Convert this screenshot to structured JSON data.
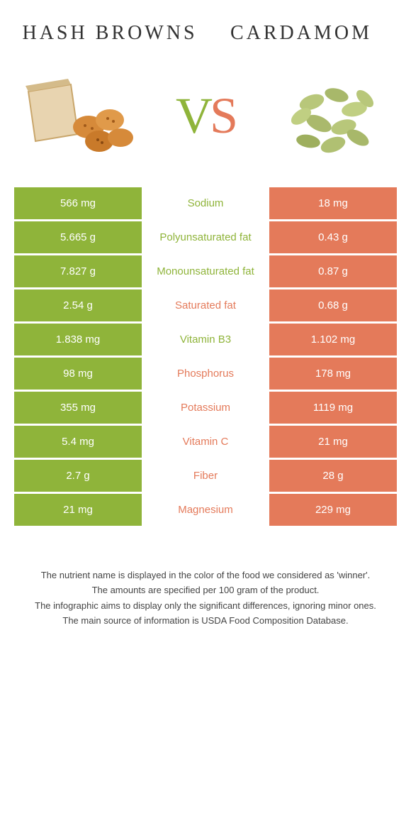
{
  "foodA": {
    "name": "HASH BROWNS"
  },
  "foodB": {
    "name": "CARDAMOM"
  },
  "vs": {
    "v": "V",
    "s": "S"
  },
  "colors": {
    "green": "#8fb43a",
    "orange": "#e47a5a",
    "bg": "#ffffff"
  },
  "rows": [
    {
      "left": "566 mg",
      "label": "Sodium",
      "right": "18 mg",
      "winner": "A"
    },
    {
      "left": "5.665 g",
      "label": "Polyunsaturated fat",
      "right": "0.43 g",
      "winner": "A"
    },
    {
      "left": "7.827 g",
      "label": "Monounsaturated fat",
      "right": "0.87 g",
      "winner": "A"
    },
    {
      "left": "2.54 g",
      "label": "Saturated fat",
      "right": "0.68 g",
      "winner": "B"
    },
    {
      "left": "1.838 mg",
      "label": "Vitamin B3",
      "right": "1.102 mg",
      "winner": "A"
    },
    {
      "left": "98 mg",
      "label": "Phosphorus",
      "right": "178 mg",
      "winner": "B"
    },
    {
      "left": "355 mg",
      "label": "Potassium",
      "right": "1119 mg",
      "winner": "B"
    },
    {
      "left": "5.4 mg",
      "label": "Vitamin C",
      "right": "21 mg",
      "winner": "B"
    },
    {
      "left": "2.7 g",
      "label": "Fiber",
      "right": "28 g",
      "winner": "B"
    },
    {
      "left": "21 mg",
      "label": "Magnesium",
      "right": "229 mg",
      "winner": "B"
    }
  ],
  "footer": {
    "l1": "The nutrient name is displayed in the color of the food we considered as 'winner'.",
    "l2": "The amounts are specified per 100 gram of the product.",
    "l3": "The infographic aims to display only the significant differences, ignoring minor ones.",
    "l4": "The main source of information is USDA Food Composition Database."
  }
}
